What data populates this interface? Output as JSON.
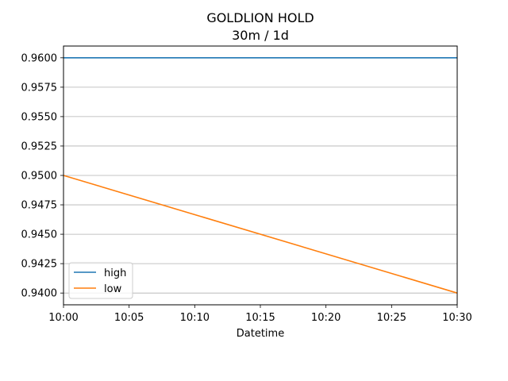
{
  "chart_data": {
    "type": "line",
    "title": "GOLDLION HOLD",
    "subtitle": "30m / 1d",
    "xlabel": "Datetime",
    "ylabel": "",
    "x": [
      "10:00",
      "10:30"
    ],
    "x_ticks": [
      "10:00",
      "10:05",
      "10:10",
      "10:15",
      "10:20",
      "10:25",
      "10:30"
    ],
    "y_ticks": [
      "0.9400",
      "0.9425",
      "0.9450",
      "0.9475",
      "0.9500",
      "0.9525",
      "0.9550",
      "0.9575",
      "0.9600"
    ],
    "ylim": [
      0.939,
      0.961
    ],
    "grid": "y-axis only",
    "legend_position": "lower-left",
    "series": [
      {
        "name": "high",
        "values": [
          0.96,
          0.96
        ],
        "color": "#1f77b4"
      },
      {
        "name": "low",
        "values": [
          0.95,
          0.94
        ],
        "color": "#ff7f0e"
      }
    ]
  }
}
